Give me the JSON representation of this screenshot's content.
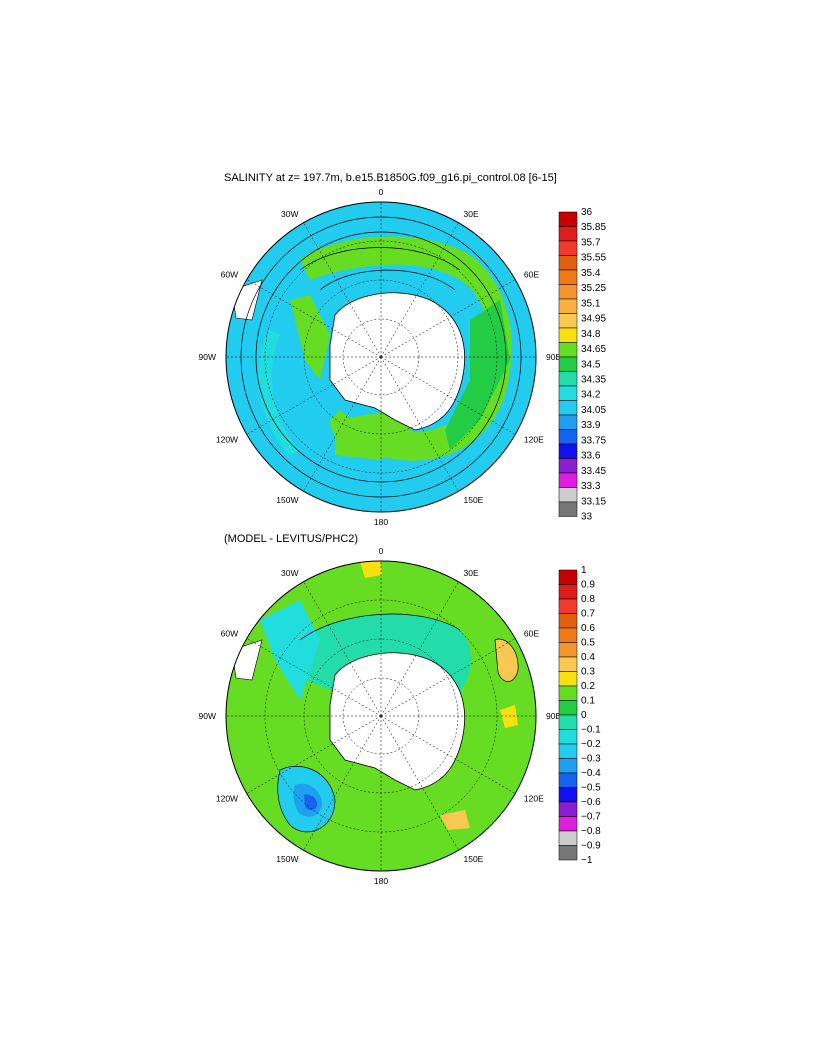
{
  "panel_top": {
    "title": "SALINITY at z= 197.7m, b.e15.B1850G.f09_g16.pi_control.08 [6-15]",
    "lon_labels": [
      "0",
      "30E",
      "60E",
      "90E",
      "120E",
      "150E",
      "180",
      "150W",
      "120W",
      "90W",
      "60W",
      "30W"
    ],
    "colorbar": {
      "labels": [
        "36",
        "35.85",
        "35.7",
        "35.55",
        "35.4",
        "35.25",
        "35.1",
        "34.95",
        "34.8",
        "34.65",
        "34.5",
        "34.35",
        "34.2",
        "34.05",
        "33.9",
        "33.75",
        "33.6",
        "33.45",
        "33.3",
        "33.15",
        "33"
      ],
      "colors": [
        "#c80000",
        "#e01c1c",
        "#f23a2a",
        "#e06010",
        "#f07a18",
        "#f5952e",
        "#f8b040",
        "#f8c850",
        "#f8e010",
        "#66dd22",
        "#22cc44",
        "#22ddaa",
        "#22dddd",
        "#22ccee",
        "#1e9ff0",
        "#1464f0",
        "#1010f0",
        "#8a1ed2",
        "#e01ee0",
        "#cccccc",
        "#777777"
      ]
    }
  },
  "panel_bottom": {
    "title": "(MODEL - LEVITUS/PHC2)",
    "lon_labels": [
      "0",
      "30E",
      "60E",
      "90E",
      "120E",
      "150E",
      "180",
      "150W",
      "120W",
      "90W",
      "60W",
      "30W"
    ],
    "colorbar": {
      "labels": [
        "1",
        "0.9",
        "0.8",
        "0.7",
        "0.6",
        "0.5",
        "0.4",
        "0.3",
        "0.2",
        "0.1",
        "0",
        "−0.1",
        "−0.2",
        "−0.3",
        "−0.4",
        "−0.5",
        "−0.6",
        "−0.7",
        "−0.8",
        "−0.9",
        "−1"
      ],
      "colors": [
        "#c80000",
        "#e01c1c",
        "#f23a2a",
        "#e06010",
        "#f07a18",
        "#f5952e",
        "#f8c850",
        "#f8e010",
        "#66dd22",
        "#22cc44",
        "#22ddaa",
        "#22dddd",
        "#22ccee",
        "#1e9ff0",
        "#1464f0",
        "#1010f0",
        "#8a1ed2",
        "#e01ee0",
        "#cccccc",
        "#777777"
      ]
    }
  }
}
